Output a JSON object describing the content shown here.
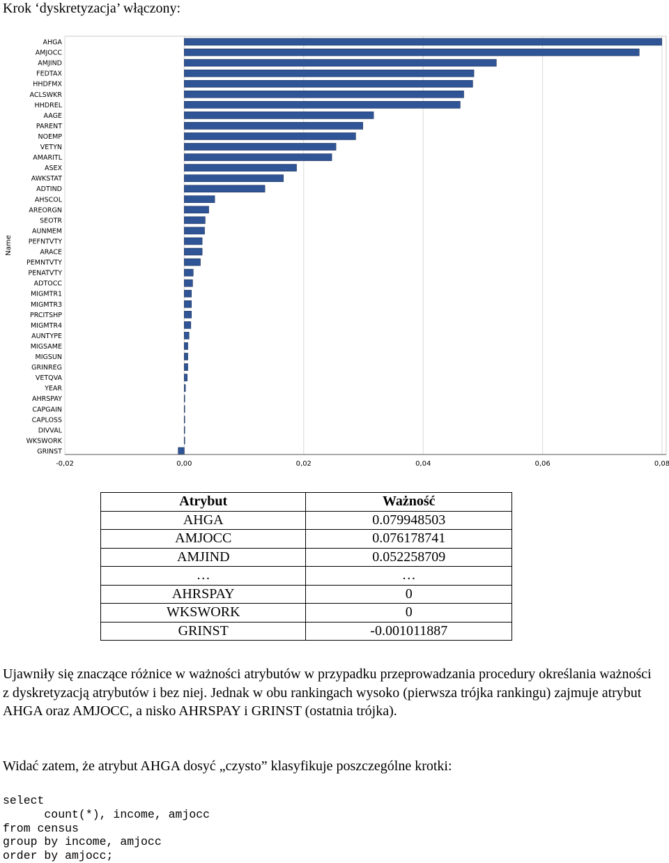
{
  "heading": "Krok ‘dyskretyzacja’ włączony:",
  "chart_data": {
    "type": "bar",
    "orientation": "horizontal",
    "ylabel": "Name",
    "xlabel": "",
    "xlim": [
      -0.02,
      0.08
    ],
    "xticks": [
      "-0,02",
      "0,00",
      "0,02",
      "0,04",
      "0,06",
      "0,08"
    ],
    "grid": true,
    "bar_color": "#2f5597",
    "categories": [
      "AHGA",
      "AMJOCC",
      "AMJIND",
      "FEDTAX",
      "HHDFMX",
      "ACLSWKR",
      "HHDREL",
      "AAGE",
      "PARENT",
      "NOEMP",
      "VETYN",
      "AMARITL",
      "ASEX",
      "AWKSTAT",
      "ADTIND",
      "AHSCOL",
      "AREORGN",
      "SEOTR",
      "AUNMEM",
      "PEFNTVTY",
      "ARACE",
      "PEMNTVTY",
      "PENATVTY",
      "ADTOCC",
      "MIGMTR1",
      "MIGMTR3",
      "PRCITSHP",
      "MIGMTR4",
      "AUNTYPE",
      "MIGSAME",
      "MIGSUN",
      "GRINREG",
      "VETQVA",
      "YEAR",
      "AHRSPAY",
      "CAPGAIN",
      "CAPLOSS",
      "DIVVAL",
      "WKSWORK",
      "GRINST"
    ],
    "values": [
      0.079948503,
      0.076178741,
      0.052258709,
      0.0485,
      0.0483,
      0.0468,
      0.0462,
      0.0317,
      0.0299,
      0.0287,
      0.0254,
      0.0247,
      0.0188,
      0.0166,
      0.0135,
      0.0051,
      0.0041,
      0.0035,
      0.0034,
      0.003,
      0.003,
      0.0027,
      0.0015,
      0.0014,
      0.0012,
      0.0012,
      0.0012,
      0.0011,
      0.0008,
      0.0006,
      0.0006,
      0.0006,
      0.0005,
      0.0002,
      0,
      0,
      0,
      0,
      0,
      -0.001011887
    ]
  },
  "table": {
    "headers": [
      "Atrybut",
      "Ważność"
    ],
    "rows": [
      [
        "AHGA",
        "0.079948503"
      ],
      [
        "AMJOCC",
        "0.076178741"
      ],
      [
        "AMJIND",
        "0.052258709"
      ],
      [
        "…",
        "…"
      ],
      [
        "AHRSPAY",
        "0"
      ],
      [
        "WKSWORK",
        "0"
      ],
      [
        "GRINST",
        "-0.001011887"
      ]
    ]
  },
  "paragraph1": "Ujawniły się znaczące różnice w ważności atrybutów w przypadku przeprowadzania procedury określania ważności z dyskretyzacją atrybutów i bez niej. Jednak w obu rankingach wysoko (pierwsza trójka rankingu) zajmuje atrybut AHGA oraz AMJOCC, a nisko AHRSPAY i GRINST (ostatnia trójka).",
  "paragraph2": "Widać zatem, że atrybut AHGA dosyć „czysto” klasyfikuje poszczególne krotki:",
  "code": "select\n      count(*), income, amjocc\nfrom census\ngroup by income, amjocc\norder by amjocc;"
}
